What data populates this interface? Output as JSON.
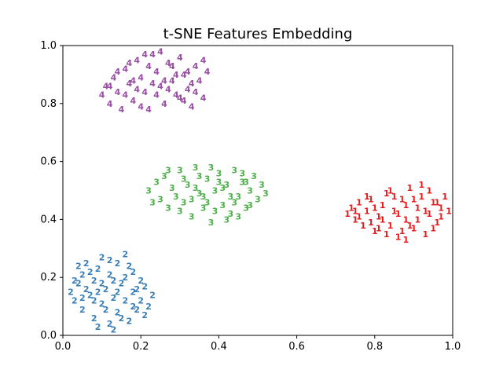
{
  "chart_data": {
    "type": "scatter",
    "title": "t-SNE Features Embedding",
    "xlabel": "",
    "ylabel": "",
    "xlim": [
      0.0,
      1.0
    ],
    "ylim": [
      0.0,
      1.0
    ],
    "xticks": [
      "0.0",
      "0.2",
      "0.4",
      "0.6",
      "0.8",
      "1.0"
    ],
    "yticks": [
      "0.0",
      "0.2",
      "0.4",
      "0.6",
      "0.8",
      "1.0"
    ],
    "grid": false,
    "marker": "digit text labels",
    "series": [
      {
        "label": "1",
        "color": "#e41a1c",
        "points": [
          [
            0.73,
            0.42
          ],
          [
            0.74,
            0.44
          ],
          [
            0.75,
            0.4
          ],
          [
            0.76,
            0.46
          ],
          [
            0.77,
            0.38
          ],
          [
            0.78,
            0.43
          ],
          [
            0.79,
            0.47
          ],
          [
            0.8,
            0.36
          ],
          [
            0.81,
            0.41
          ],
          [
            0.82,
            0.45
          ],
          [
            0.83,
            0.49
          ],
          [
            0.84,
            0.38
          ],
          [
            0.85,
            0.43
          ],
          [
            0.86,
            0.34
          ],
          [
            0.87,
            0.47
          ],
          [
            0.88,
            0.4
          ],
          [
            0.89,
            0.51
          ],
          [
            0.9,
            0.37
          ],
          [
            0.91,
            0.44
          ],
          [
            0.92,
            0.48
          ],
          [
            0.93,
            0.35
          ],
          [
            0.94,
            0.42
          ],
          [
            0.95,
            0.46
          ],
          [
            0.96,
            0.39
          ],
          [
            0.97,
            0.44
          ],
          [
            0.98,
            0.48
          ],
          [
            0.99,
            0.43
          ],
          [
            0.76,
            0.41
          ],
          [
            0.79,
            0.39
          ],
          [
            0.82,
            0.4
          ],
          [
            0.85,
            0.48
          ],
          [
            0.88,
            0.45
          ],
          [
            0.91,
            0.4
          ],
          [
            0.94,
            0.5
          ],
          [
            0.97,
            0.41
          ],
          [
            0.8,
            0.44
          ],
          [
            0.84,
            0.5
          ],
          [
            0.87,
            0.36
          ],
          [
            0.9,
            0.47
          ],
          [
            0.93,
            0.43
          ],
          [
            0.78,
            0.48
          ],
          [
            0.83,
            0.35
          ],
          [
            0.86,
            0.42
          ],
          [
            0.89,
            0.38
          ],
          [
            0.92,
            0.52
          ],
          [
            0.95,
            0.37
          ],
          [
            0.75,
            0.43
          ],
          [
            0.81,
            0.37
          ],
          [
            0.96,
            0.46
          ],
          [
            0.88,
            0.33
          ]
        ]
      },
      {
        "label": "2",
        "color": "#377eb8",
        "points": [
          [
            0.02,
            0.15
          ],
          [
            0.03,
            0.12
          ],
          [
            0.04,
            0.18
          ],
          [
            0.05,
            0.21
          ],
          [
            0.05,
            0.09
          ],
          [
            0.06,
            0.25
          ],
          [
            0.07,
            0.14
          ],
          [
            0.08,
            0.06
          ],
          [
            0.08,
            0.19
          ],
          [
            0.09,
            0.23
          ],
          [
            0.1,
            0.11
          ],
          [
            0.1,
            0.27
          ],
          [
            0.11,
            0.16
          ],
          [
            0.12,
            0.04
          ],
          [
            0.12,
            0.21
          ],
          [
            0.13,
            0.13
          ],
          [
            0.14,
            0.25
          ],
          [
            0.14,
            0.08
          ],
          [
            0.15,
            0.18
          ],
          [
            0.16,
            0.28
          ],
          [
            0.16,
            0.12
          ],
          [
            0.17,
            0.05
          ],
          [
            0.18,
            0.22
          ],
          [
            0.18,
            0.15
          ],
          [
            0.19,
            0.09
          ],
          [
            0.2,
            0.19
          ],
          [
            0.2,
            0.12
          ],
          [
            0.21,
            0.17
          ],
          [
            0.22,
            0.1
          ],
          [
            0.23,
            0.14
          ],
          [
            0.04,
            0.24
          ],
          [
            0.06,
            0.16
          ],
          [
            0.07,
            0.22
          ],
          [
            0.09,
            0.03
          ],
          [
            0.11,
            0.09
          ],
          [
            0.13,
            0.19
          ],
          [
            0.15,
            0.06
          ],
          [
            0.17,
            0.24
          ],
          [
            0.19,
            0.16
          ],
          [
            0.21,
            0.07
          ],
          [
            0.03,
            0.19
          ],
          [
            0.08,
            0.12
          ],
          [
            0.12,
            0.26
          ],
          [
            0.14,
            0.15
          ],
          [
            0.16,
            0.2
          ],
          [
            0.1,
            0.18
          ],
          [
            0.05,
            0.13
          ],
          [
            0.18,
            0.1
          ],
          [
            0.13,
            0.02
          ],
          [
            0.09,
            0.15
          ]
        ]
      },
      {
        "label": "3",
        "color": "#4daf4a",
        "points": [
          [
            0.22,
            0.5
          ],
          [
            0.24,
            0.53
          ],
          [
            0.25,
            0.47
          ],
          [
            0.26,
            0.55
          ],
          [
            0.27,
            0.44
          ],
          [
            0.28,
            0.51
          ],
          [
            0.3,
            0.57
          ],
          [
            0.31,
            0.46
          ],
          [
            0.32,
            0.52
          ],
          [
            0.33,
            0.41
          ],
          [
            0.34,
            0.58
          ],
          [
            0.35,
            0.49
          ],
          [
            0.36,
            0.44
          ],
          [
            0.37,
            0.54
          ],
          [
            0.38,
            0.39
          ],
          [
            0.39,
            0.5
          ],
          [
            0.4,
            0.56
          ],
          [
            0.41,
            0.45
          ],
          [
            0.42,
            0.52
          ],
          [
            0.43,
            0.42
          ],
          [
            0.44,
            0.57
          ],
          [
            0.45,
            0.48
          ],
          [
            0.46,
            0.53
          ],
          [
            0.47,
            0.44
          ],
          [
            0.48,
            0.5
          ],
          [
            0.49,
            0.55
          ],
          [
            0.5,
            0.47
          ],
          [
            0.51,
            0.52
          ],
          [
            0.52,
            0.49
          ],
          [
            0.29,
            0.48
          ],
          [
            0.31,
            0.54
          ],
          [
            0.33,
            0.47
          ],
          [
            0.35,
            0.55
          ],
          [
            0.37,
            0.46
          ],
          [
            0.39,
            0.43
          ],
          [
            0.41,
            0.51
          ],
          [
            0.43,
            0.48
          ],
          [
            0.45,
            0.41
          ],
          [
            0.47,
            0.53
          ],
          [
            0.34,
            0.51
          ],
          [
            0.38,
            0.58
          ],
          [
            0.42,
            0.4
          ],
          [
            0.46,
            0.56
          ],
          [
            0.3,
            0.43
          ],
          [
            0.36,
            0.48
          ],
          [
            0.4,
            0.53
          ],
          [
            0.44,
            0.46
          ],
          [
            0.27,
            0.57
          ],
          [
            0.48,
            0.45
          ],
          [
            0.23,
            0.46
          ]
        ]
      },
      {
        "label": "4",
        "color": "#984ea3",
        "points": [
          [
            0.1,
            0.83
          ],
          [
            0.11,
            0.86
          ],
          [
            0.12,
            0.8
          ],
          [
            0.13,
            0.89
          ],
          [
            0.14,
            0.84
          ],
          [
            0.15,
            0.78
          ],
          [
            0.16,
            0.92
          ],
          [
            0.17,
            0.87
          ],
          [
            0.18,
            0.81
          ],
          [
            0.19,
            0.95
          ],
          [
            0.2,
            0.89
          ],
          [
            0.21,
            0.84
          ],
          [
            0.22,
            0.78
          ],
          [
            0.23,
            0.97
          ],
          [
            0.24,
            0.91
          ],
          [
            0.25,
            0.86
          ],
          [
            0.26,
            0.8
          ],
          [
            0.27,
            0.94
          ],
          [
            0.28,
            0.88
          ],
          [
            0.29,
            0.83
          ],
          [
            0.3,
            0.96
          ],
          [
            0.31,
            0.9
          ],
          [
            0.32,
            0.85
          ],
          [
            0.33,
            0.79
          ],
          [
            0.34,
            0.93
          ],
          [
            0.35,
            0.88
          ],
          [
            0.36,
            0.82
          ],
          [
            0.37,
            0.91
          ],
          [
            0.14,
            0.91
          ],
          [
            0.16,
            0.83
          ],
          [
            0.18,
            0.88
          ],
          [
            0.2,
            0.79
          ],
          [
            0.22,
            0.93
          ],
          [
            0.24,
            0.83
          ],
          [
            0.26,
            0.88
          ],
          [
            0.28,
            0.93
          ],
          [
            0.3,
            0.82
          ],
          [
            0.32,
            0.91
          ],
          [
            0.34,
            0.84
          ],
          [
            0.36,
            0.95
          ],
          [
            0.17,
            0.94
          ],
          [
            0.21,
            0.97
          ],
          [
            0.25,
            0.98
          ],
          [
            0.29,
            0.9
          ],
          [
            0.33,
            0.87
          ],
          [
            0.19,
            0.85
          ],
          [
            0.23,
            0.87
          ],
          [
            0.27,
            0.85
          ],
          [
            0.31,
            0.81
          ],
          [
            0.12,
            0.86
          ]
        ]
      }
    ]
  }
}
